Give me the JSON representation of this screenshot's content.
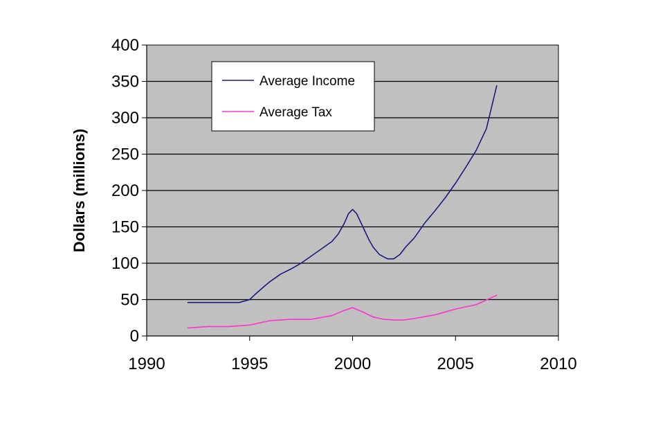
{
  "chart_data": {
    "type": "line",
    "ylabel": "Dollars (millions)",
    "xlabel": "",
    "xlim": [
      1990,
      2010
    ],
    "ylim": [
      0,
      400
    ],
    "x_ticks": [
      1990,
      1995,
      2000,
      2005,
      2010
    ],
    "y_ticks": [
      0,
      50,
      100,
      150,
      200,
      250,
      300,
      350,
      400
    ],
    "grid": "horizontal",
    "plot_background": "#c0c0c0",
    "legend": "top-left-inside",
    "series": [
      {
        "name": "Average Income",
        "color": "#1a1a7a",
        "x": [
          1992,
          1993,
          1994,
          1994.5,
          1995,
          1995.3,
          1995.7,
          1996,
          1996.5,
          1997,
          1997.5,
          1998,
          1998.5,
          1999,
          1999.3,
          1999.6,
          1999.8,
          2000,
          2000.2,
          2000.5,
          2000.8,
          2001,
          2001.3,
          2001.7,
          2002,
          2002.3,
          2002.6,
          2003,
          2003.5,
          2004,
          2004.5,
          2005,
          2005.5,
          2006,
          2006.5,
          2007
        ],
        "values": [
          46,
          46,
          46,
          46,
          50,
          58,
          68,
          75,
          85,
          92,
          100,
          110,
          120,
          130,
          140,
          155,
          168,
          174,
          168,
          150,
          132,
          122,
          112,
          106,
          106,
          112,
          123,
          135,
          155,
          172,
          190,
          210,
          232,
          255,
          285,
          344
        ]
      },
      {
        "name": "Average Tax",
        "color": "#ff33cc",
        "x": [
          1992,
          1993,
          1994,
          1995,
          1996,
          1997,
          1998,
          1999,
          1999.5,
          2000,
          2000.5,
          2001,
          2001.5,
          2002,
          2002.5,
          2003,
          2004,
          2005,
          2006,
          2007
        ],
        "values": [
          11,
          13,
          13,
          15,
          21,
          23,
          23,
          28,
          34,
          39,
          33,
          26,
          23,
          22,
          22,
          24,
          29,
          37,
          43,
          56
        ]
      }
    ]
  }
}
